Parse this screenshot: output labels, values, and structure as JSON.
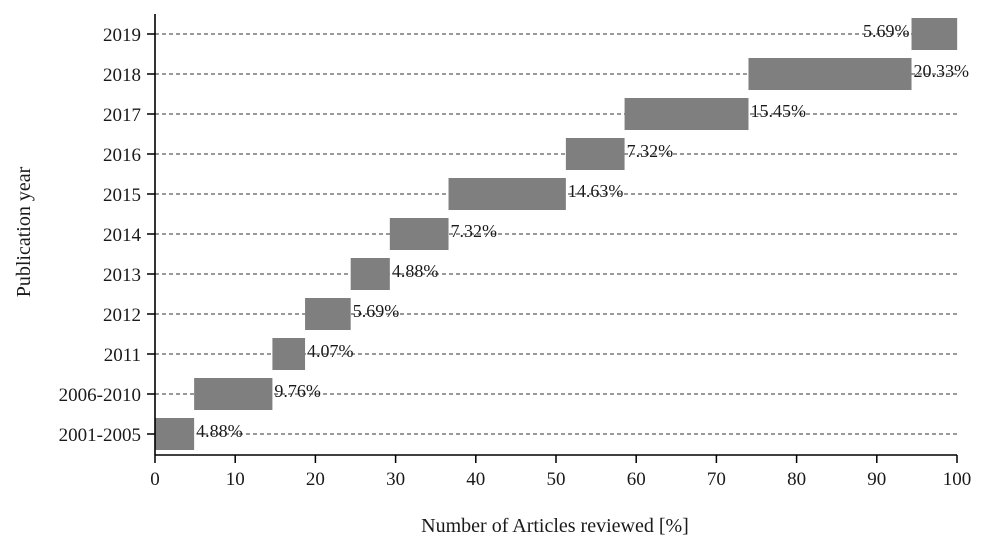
{
  "chart_data": {
    "type": "bar",
    "orientation": "horizontal",
    "stacked_cumulative": true,
    "categories": [
      "2001-2005",
      "2006-2010",
      "2011",
      "2012",
      "2013",
      "2014",
      "2015",
      "2016",
      "2017",
      "2018",
      "2019"
    ],
    "values": [
      4.88,
      9.76,
      4.07,
      5.69,
      4.88,
      7.32,
      14.63,
      7.32,
      15.45,
      20.33,
      5.69
    ],
    "value_labels": [
      "4.88%",
      "9.76%",
      "4.07%",
      "5.69%",
      "4.88%",
      "7.32%",
      "14.63%",
      "7.32%",
      "15.45%",
      "20.33%",
      "5.69%"
    ],
    "xlabel": "Number of Articles reviewed [%]",
    "ylabel": "Publication year",
    "xlim": [
      0,
      100
    ],
    "xticks": [
      0,
      10,
      20,
      30,
      40,
      50,
      60,
      70,
      80,
      90,
      100
    ],
    "grid": "horizontal-dashed",
    "bar_color": "#7f7f7f",
    "last_label_side": "left"
  }
}
